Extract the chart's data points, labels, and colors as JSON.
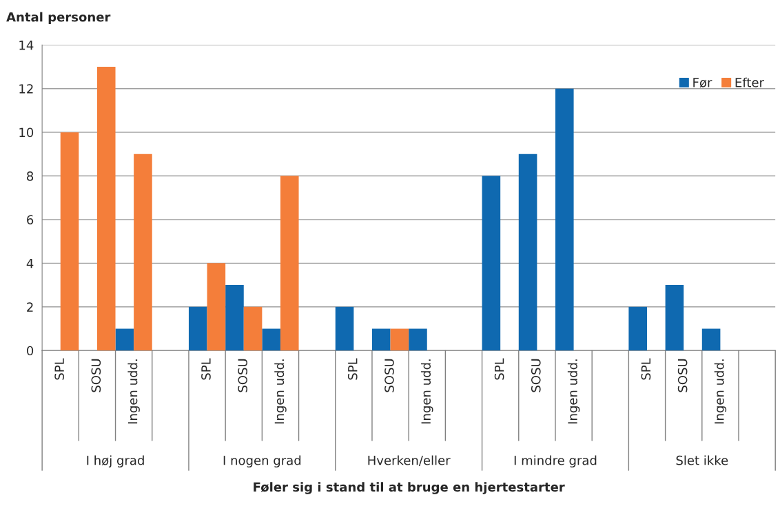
{
  "chart_data": {
    "type": "bar",
    "ylabel": "Antal personer",
    "xlabel": "Føler sig i stand til at bruge en hjertestarter",
    "categories": [
      "SPL",
      "SOSU",
      "Ingen udd.",
      null,
      "SPL",
      "SOSU",
      "Ingen udd.",
      null,
      "SPL",
      "SOSU",
      "Ingen udd.",
      null,
      "SPL",
      "SOSU",
      "Ingen udd.",
      null,
      "SPL",
      "SOSU",
      "Ingen udd.",
      null
    ],
    "series": [
      {
        "name": "Før",
        "color": "#0f69b0",
        "values": [
          0,
          0,
          1,
          null,
          2,
          3,
          1,
          null,
          2,
          1,
          1,
          null,
          8,
          9,
          12,
          null,
          2,
          3,
          1,
          null
        ]
      },
      {
        "name": "Efter",
        "color": "#f47e3a",
        "values": [
          10,
          13,
          9,
          null,
          4,
          2,
          8,
          null,
          0,
          1,
          0,
          null,
          0,
          0,
          0,
          null,
          0,
          0,
          0,
          null
        ]
      }
    ],
    "annotations": [
      "I høj grad",
      "I nogen grad",
      "Hverken/eller",
      "I mindre grad",
      "Slet ikke"
    ],
    "ylim": [
      0,
      14
    ],
    "yticks": [
      0,
      2,
      4,
      6,
      8,
      10,
      12,
      14
    ],
    "grid": "y",
    "legend": "top right"
  }
}
